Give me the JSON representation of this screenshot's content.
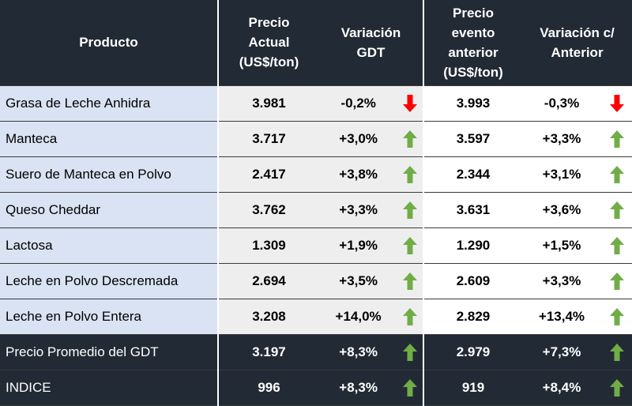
{
  "header": {
    "producto": "Producto",
    "precio_actual": [
      "Precio",
      "Actual",
      "(US$/ton)"
    ],
    "variacion_gdt": [
      "Variación",
      "GDT"
    ],
    "precio_anterior": [
      "Precio",
      "evento",
      "anterior",
      "(US$/ton)"
    ],
    "variacion_anterior": [
      "Variación c/",
      "Anterior"
    ]
  },
  "rows": [
    {
      "producto": "Grasa de Leche Anhidra",
      "precio_actual": "3.981",
      "var_gdt": "-0,2%",
      "gdt_dir": "down",
      "precio_anterior": "3.993",
      "var_anterior": "-0,3%",
      "ant_dir": "down"
    },
    {
      "producto": "Manteca",
      "precio_actual": "3.717",
      "var_gdt": "+3,0%",
      "gdt_dir": "up",
      "precio_anterior": "3.597",
      "var_anterior": "+3,3%",
      "ant_dir": "up"
    },
    {
      "producto": "Suero de Manteca en Polvo",
      "precio_actual": "2.417",
      "var_gdt": "+3,8%",
      "gdt_dir": "up",
      "precio_anterior": "2.344",
      "var_anterior": "+3,1%",
      "ant_dir": "up"
    },
    {
      "producto": "Queso Cheddar",
      "precio_actual": "3.762",
      "var_gdt": "+3,3%",
      "gdt_dir": "up",
      "precio_anterior": "3.631",
      "var_anterior": "+3,6%",
      "ant_dir": "up"
    },
    {
      "producto": "Lactosa",
      "precio_actual": "1.309",
      "var_gdt": "+1,9%",
      "gdt_dir": "up",
      "precio_anterior": "1.290",
      "var_anterior": "+1,5%",
      "ant_dir": "up"
    },
    {
      "producto": "Leche en Polvo Descremada",
      "precio_actual": "2.694",
      "var_gdt": "+3,5%",
      "gdt_dir": "up",
      "precio_anterior": "2.609",
      "var_anterior": "+3,3%",
      "ant_dir": "up"
    },
    {
      "producto": "Leche en Polvo Entera",
      "precio_actual": "3.208",
      "var_gdt": "+14,0%",
      "gdt_dir": "up",
      "precio_anterior": "2.829",
      "var_anterior": "+13,4%",
      "ant_dir": "up"
    }
  ],
  "summary": [
    {
      "producto": "Precio Promedio del GDT",
      "precio_actual": "3.197",
      "var_gdt": "+8,3%",
      "gdt_dir": "up",
      "precio_anterior": "2.979",
      "var_anterior": "+7,3%",
      "ant_dir": "up"
    },
    {
      "producto": "INDICE",
      "precio_actual": "996",
      "var_gdt": "+8,3%",
      "gdt_dir": "up",
      "precio_anterior": "919",
      "var_anterior": "+8,4%",
      "ant_dir": "up"
    }
  ],
  "colors": {
    "up": "#70ad47",
    "down": "#ff0000",
    "header_bg": "#222a35",
    "product_bg": "#dae3f3"
  }
}
